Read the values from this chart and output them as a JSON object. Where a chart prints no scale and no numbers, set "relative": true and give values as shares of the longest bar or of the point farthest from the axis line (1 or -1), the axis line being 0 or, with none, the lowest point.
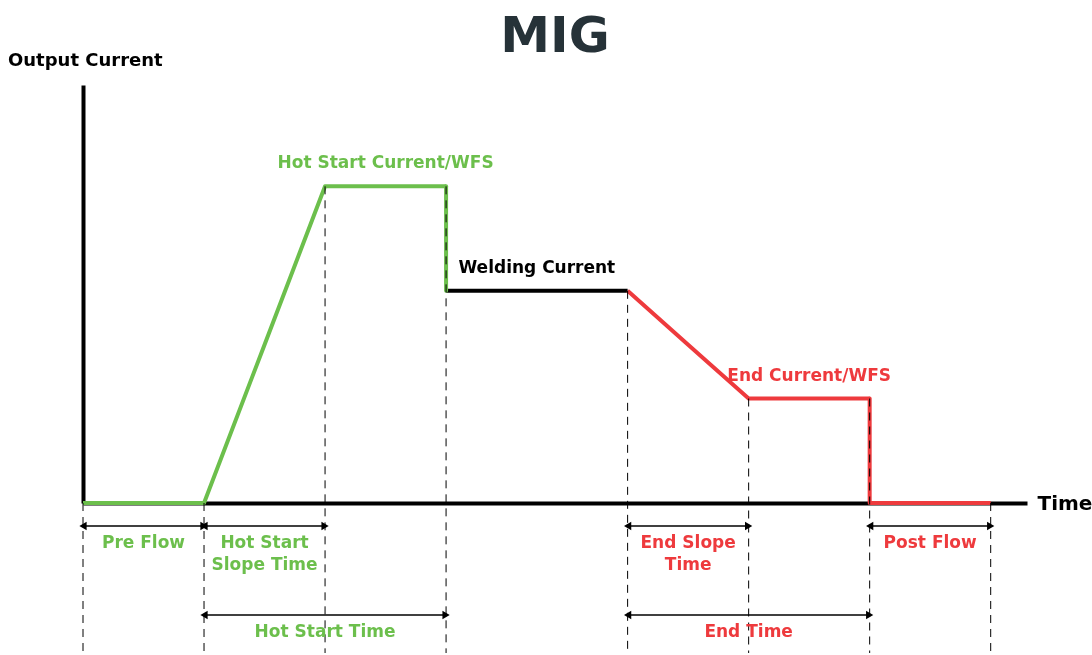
{
  "chart_data": {
    "type": "line",
    "title": "MIG",
    "xlabel": "Time",
    "relative": true,
    "annotations": [
      "Output Current",
      "Pre Flow",
      "Hot Start Slope Time",
      "Hot Start Time",
      "End Slope Time",
      "End Time",
      "Post Flow"
    ],
    "categories": [
      null,
      null,
      null,
      null,
      null,
      null,
      null,
      null,
      null,
      null,
      null,
      null,
      null,
      null,
      null,
      null
    ],
    "series": [
      {
        "name": "Hot Start Current/WFS",
        "color": "#6cbf4c",
        "values": [
          0,
          0,
          0,
          0.5,
          1,
          1,
          1,
          null,
          null,
          null,
          null,
          null,
          null,
          null,
          null,
          null
        ]
      },
      {
        "name": "Welding Current",
        "color": "#000000",
        "values": [
          null,
          null,
          null,
          null,
          null,
          null,
          0.67,
          0.67,
          0.67,
          0.67,
          null,
          null,
          null,
          null,
          null,
          null
        ]
      },
      {
        "name": "End Current/WFS",
        "color": "#ee3a3d",
        "values": [
          null,
          null,
          null,
          null,
          null,
          null,
          null,
          null,
          null,
          0.67,
          0.5,
          0.33,
          0.33,
          0.33,
          null,
          null
        ]
      },
      {
        "color": "#ee3a3d",
        "values": [
          null,
          null,
          null,
          null,
          null,
          null,
          null,
          null,
          null,
          null,
          null,
          null,
          null,
          0,
          0,
          0
        ]
      }
    ]
  }
}
